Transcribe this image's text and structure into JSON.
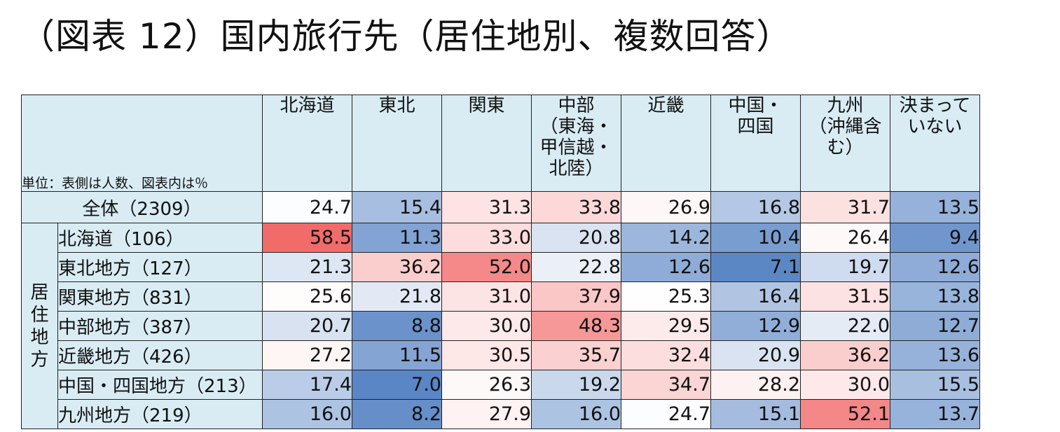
{
  "title": "（図表 12）国内旅行先（居住地別、複数回答）",
  "unit_note": "単位：表側は人数、図表内は％",
  "group_label": [
    "居",
    "住",
    "地",
    "方"
  ],
  "chart_data": {
    "type": "heatmap",
    "columns": [
      {
        "name": "北海道",
        "lines": [
          "北海道"
        ]
      },
      {
        "name": "東北",
        "lines": [
          "東北"
        ]
      },
      {
        "name": "関東",
        "lines": [
          "関東"
        ]
      },
      {
        "name": "中部（東海・甲信越・北陸）",
        "lines": [
          "中部",
          "（東海・",
          "甲信越・",
          "北陸）"
        ]
      },
      {
        "name": "近畿",
        "lines": [
          "近畿"
        ]
      },
      {
        "name": "中国・四国",
        "lines": [
          "中国・",
          "四国"
        ]
      },
      {
        "name": "九州（沖縄含む）",
        "lines": [
          "九州",
          "（沖縄含",
          "む）"
        ]
      },
      {
        "name": "決まっていない",
        "lines": [
          "決まって",
          "いない"
        ]
      }
    ],
    "rows": [
      {
        "label": "全体（2309）",
        "values": [
          "24.7",
          "15.4",
          "31.3",
          "33.8",
          "26.9",
          "16.8",
          "31.7",
          "13.5"
        ]
      },
      {
        "label": "北海道（106）",
        "values": [
          "58.5",
          "11.3",
          "33.0",
          "20.8",
          "14.2",
          "10.4",
          "26.4",
          "9.4"
        ]
      },
      {
        "label": "東北地方（127）",
        "values": [
          "21.3",
          "36.2",
          "52.0",
          "22.8",
          "12.6",
          "7.1",
          "19.7",
          "12.6"
        ]
      },
      {
        "label": "関東地方（831）",
        "values": [
          "25.6",
          "21.8",
          "31.0",
          "37.9",
          "25.3",
          "16.4",
          "31.5",
          "13.8"
        ]
      },
      {
        "label": "中部地方（387）",
        "values": [
          "20.7",
          "8.8",
          "30.0",
          "48.3",
          "29.5",
          "12.9",
          "22.0",
          "12.7"
        ]
      },
      {
        "label": "近畿地方（426）",
        "values": [
          "27.2",
          "11.5",
          "30.5",
          "35.7",
          "32.4",
          "20.9",
          "36.2",
          "13.6"
        ]
      },
      {
        "label": "中国・四国地方（213）",
        "values": [
          "17.4",
          "7.0",
          "26.3",
          "19.2",
          "34.7",
          "28.2",
          "30.0",
          "15.5"
        ]
      },
      {
        "label": "九州地方（219）",
        "values": [
          "16.0",
          "8.2",
          "27.9",
          "16.0",
          "24.7",
          "15.1",
          "52.1",
          "13.7"
        ]
      }
    ],
    "color_scale": {
      "low": "#5b86c5",
      "mid": "#ffffff",
      "high": "#f26b6b"
    }
  }
}
